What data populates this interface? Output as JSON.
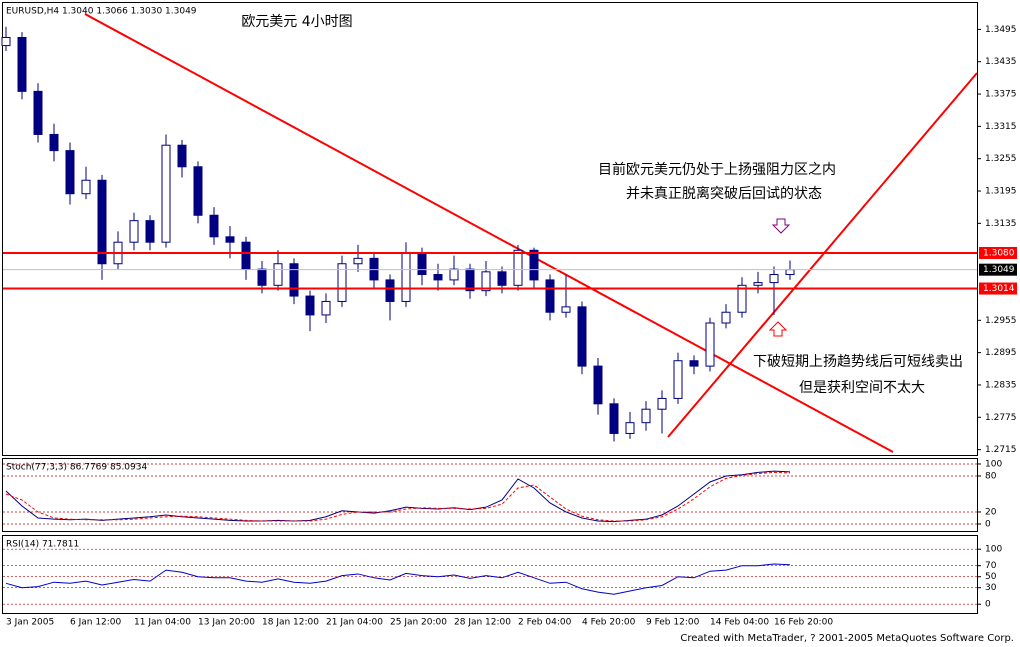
{
  "chart_data": [
    {
      "type": "candlestick",
      "title": "EURUSD,H4  1.3040 1.3066 1.3030 1.3049",
      "categories": [
        "3 Jan 2005",
        null,
        null,
        null,
        "6 Jan 12:00",
        null,
        null,
        null,
        "11 Jan 04:00",
        null,
        null,
        null,
        "13 Jan 20:00",
        null,
        null,
        null,
        "18 Jan 12:00",
        null,
        null,
        null,
        "21 Jan 04:00",
        null,
        null,
        null,
        "25 Jan 20:00",
        null,
        null,
        null,
        "28 Jan 12:00",
        null,
        null,
        null,
        "2 Feb 04:00",
        null,
        null,
        null,
        "4 Feb 20:00",
        null,
        null,
        null,
        "9 Feb 12:00",
        null,
        null,
        null,
        "14 Feb 04:00",
        null,
        null,
        null,
        "16 Feb 20:00",
        null
      ],
      "open": [
        1.3465,
        1.348,
        1.338,
        1.33,
        1.327,
        1.319,
        1.3215,
        1.306,
        1.31,
        1.314,
        1.31,
        1.328,
        1.324,
        1.315,
        1.311,
        1.31,
        1.305,
        1.302,
        1.306,
        1.3,
        1.2965,
        1.299,
        1.306,
        1.307,
        1.303,
        1.299,
        1.308,
        1.304,
        1.303,
        1.305,
        1.301,
        1.3045,
        1.302,
        1.3085,
        1.303,
        1.297,
        1.298,
        1.287,
        1.28,
        1.2745,
        1.2765,
        1.279,
        1.281,
        1.288,
        1.287,
        1.295,
        1.297,
        1.302,
        1.3025,
        1.304
      ],
      "high": [
        1.35,
        1.349,
        1.3395,
        1.332,
        1.3285,
        1.324,
        1.3225,
        1.312,
        1.3155,
        1.315,
        1.33,
        1.329,
        1.325,
        1.3165,
        1.313,
        1.311,
        1.3065,
        1.3085,
        1.307,
        1.301,
        1.3005,
        1.3075,
        1.3095,
        1.308,
        1.304,
        1.31,
        1.309,
        1.306,
        1.3075,
        1.306,
        1.3065,
        1.3055,
        1.3095,
        1.309,
        1.304,
        1.304,
        1.299,
        1.2885,
        1.281,
        1.2785,
        1.2805,
        1.2825,
        1.2895,
        1.289,
        1.296,
        1.2985,
        1.3035,
        1.3045,
        1.3055,
        1.3066
      ],
      "low": [
        1.3455,
        1.3365,
        1.3285,
        1.325,
        1.317,
        1.318,
        1.303,
        1.305,
        1.3085,
        1.3085,
        1.309,
        1.322,
        1.3135,
        1.3095,
        1.307,
        1.303,
        1.3005,
        1.301,
        1.2985,
        1.2935,
        1.295,
        1.298,
        1.3045,
        1.3015,
        1.2955,
        1.298,
        1.302,
        1.301,
        1.302,
        1.2995,
        1.3,
        1.3005,
        1.301,
        1.3015,
        1.2955,
        1.296,
        1.2855,
        1.278,
        1.273,
        1.2735,
        1.275,
        1.2745,
        1.28,
        1.2855,
        1.286,
        1.294,
        1.296,
        1.3005,
        1.2965,
        1.303
      ],
      "close": [
        1.348,
        1.338,
        1.33,
        1.327,
        1.319,
        1.3215,
        1.306,
        1.31,
        1.314,
        1.31,
        1.328,
        1.324,
        1.315,
        1.311,
        1.31,
        1.305,
        1.302,
        1.306,
        1.3,
        1.2965,
        1.299,
        1.306,
        1.307,
        1.303,
        1.299,
        1.308,
        1.304,
        1.303,
        1.305,
        1.301,
        1.3045,
        1.302,
        1.3085,
        1.303,
        1.297,
        1.298,
        1.287,
        1.28,
        1.2745,
        1.2765,
        1.279,
        1.281,
        1.288,
        1.287,
        1.295,
        1.297,
        1.302,
        1.3025,
        1.304,
        1.3049
      ],
      "up_color": "#ffffff",
      "down_color": "#000080",
      "ylim": [
        1.2705,
        1.3544
      ],
      "yticks": [
        1.3495,
        1.3435,
        1.3375,
        1.3315,
        1.3255,
        1.3195,
        1.3135,
        1.2955,
        1.2895,
        1.2835,
        1.2775,
        1.2715
      ],
      "levels": [
        {
          "value": 1.308,
          "label": "1.3080",
          "color": "#ff0000"
        },
        {
          "value": 1.3014,
          "label": "1.3014",
          "color": "#ff0000"
        },
        {
          "value": 1.3049,
          "label": "1.3049",
          "color": "#000000"
        }
      ],
      "annotations": [
        "欧元美元 4小时图",
        "目前欧元美元仍处于上扬强阻力区之内",
        "并未真正脱离突破后回试的状态",
        "下破短期上扬趋势线后可短线卖出",
        "但是获利空间不太大"
      ]
    },
    {
      "type": "line",
      "title": "Stoch(77,3,3) 86.7769 85.0934",
      "series": [
        {
          "color": "#000080",
          "dashed": false,
          "values": [
            55,
            30,
            10,
            8,
            7,
            8,
            6,
            8,
            10,
            12,
            15,
            12,
            10,
            8,
            6,
            5,
            5,
            6,
            5,
            6,
            12,
            22,
            20,
            18,
            22,
            28,
            26,
            25,
            27,
            24,
            28,
            40,
            75,
            60,
            35,
            20,
            10,
            5,
            4,
            6,
            8,
            15,
            30,
            50,
            70,
            80,
            82,
            86,
            88,
            86.7769
          ]
        },
        {
          "color": "#ff0000",
          "dashed": true,
          "values": [
            50,
            40,
            20,
            10,
            8,
            7,
            7,
            7,
            8,
            10,
            12,
            13,
            12,
            10,
            8,
            6,
            5,
            5,
            5,
            5,
            8,
            16,
            20,
            20,
            20,
            25,
            27,
            26,
            26,
            25,
            26,
            33,
            60,
            65,
            45,
            25,
            13,
            7,
            5,
            5,
            7,
            12,
            25,
            42,
            62,
            76,
            81,
            84,
            86,
            85.0934
          ]
        }
      ],
      "ylim": [
        -11.7,
        108.3
      ],
      "yticks": [
        100,
        80,
        20,
        0
      ]
    },
    {
      "type": "line",
      "title": "RSI(14) 71.7811",
      "series": [
        {
          "color": "#0000cd",
          "dashed": false,
          "values": [
            38,
            30,
            32,
            40,
            38,
            42,
            35,
            40,
            45,
            42,
            62,
            58,
            50,
            48,
            48,
            42,
            40,
            46,
            40,
            38,
            42,
            52,
            55,
            48,
            44,
            56,
            52,
            50,
            53,
            47,
            52,
            48,
            58,
            48,
            38,
            40,
            28,
            22,
            18,
            24,
            30,
            34,
            50,
            48,
            60,
            62,
            70,
            70,
            73,
            71.7811
          ]
        }
      ],
      "ylim": [
        -16,
        124
      ],
      "yticks": [
        100,
        70,
        50,
        30,
        0
      ]
    }
  ],
  "footer": "Created with MetaTrader, ? 2001-2005 MetaQuotes Software Corp."
}
